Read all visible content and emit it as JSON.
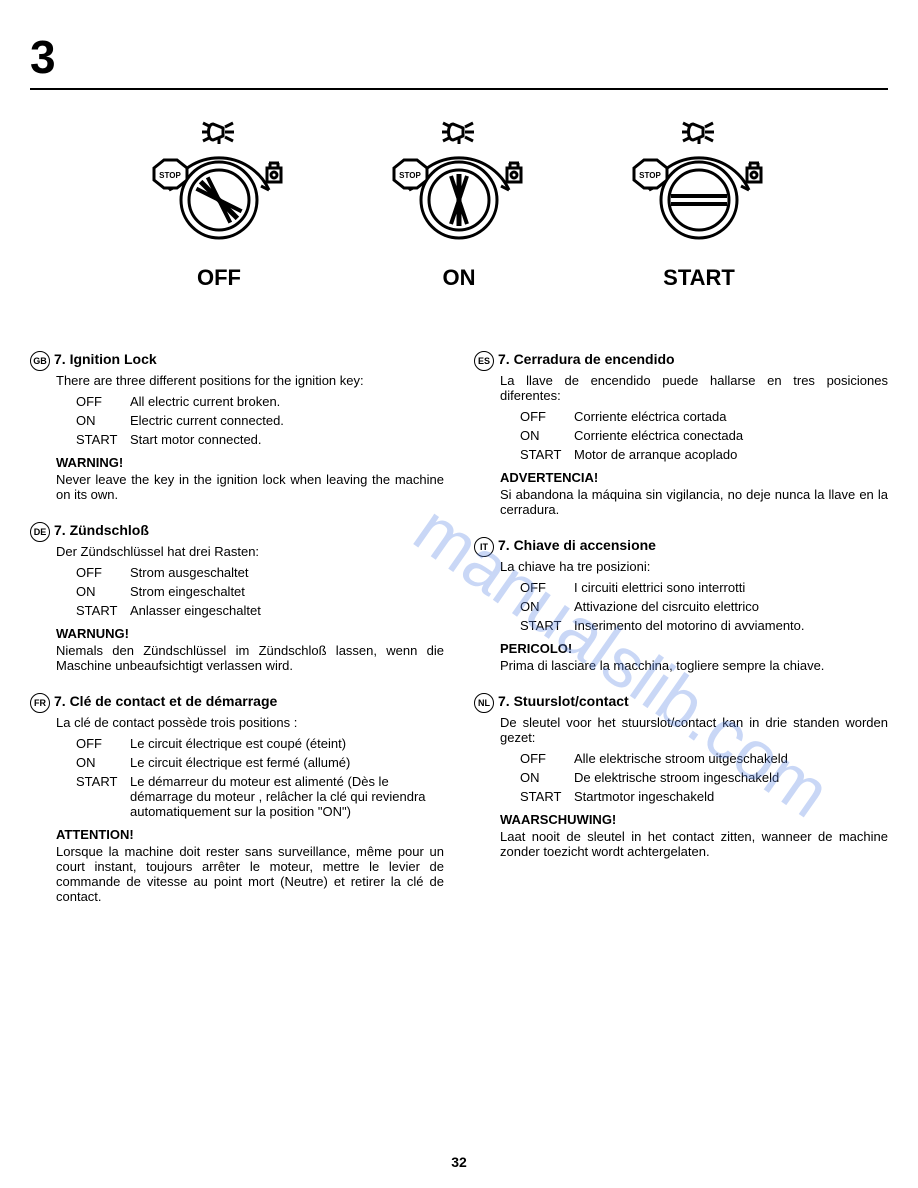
{
  "page_number_top": "3",
  "page_number_bottom": "32",
  "watermark_text": "manualslib.com",
  "diagrams": {
    "labels": [
      "OFF",
      "ON",
      "START"
    ],
    "key_angles": [
      45,
      90,
      135
    ]
  },
  "sections": [
    {
      "lang": "GB",
      "title": "7. Ignition Lock",
      "intro": "There are three different positions for the ignition key:",
      "positions": [
        {
          "key": "OFF",
          "val": "All electric current broken."
        },
        {
          "key": "ON",
          "val": "Electric current connected."
        },
        {
          "key": "START",
          "val": "Start motor connected."
        }
      ],
      "warn_label": "WARNING!",
      "warn_text": "Never leave the key in the ignition lock when leaving the machine on its own."
    },
    {
      "lang": "DE",
      "title": "7. Zündschloß",
      "intro": "Der Zündschlüssel hat drei Rasten:",
      "positions": [
        {
          "key": "OFF",
          "val": "Strom ausgeschaltet"
        },
        {
          "key": "ON",
          "val": "Strom eingeschaltet"
        },
        {
          "key": "START",
          "val": "Anlasser eingeschaltet"
        }
      ],
      "warn_label": "WARNUNG!",
      "warn_text": "Niemals den Zündschlüssel im Zündschloß lassen, wenn die Maschine unbeaufsichtigt verlassen wird."
    },
    {
      "lang": "FR",
      "title": "7. Clé de contact et de démarrage",
      "intro": "La clé de contact possède trois positions :",
      "positions": [
        {
          "key": "OFF",
          "val": "Le circuit électrique est coupé (éteint)"
        },
        {
          "key": "ON",
          "val": "Le circuit électrique est fermé (allumé)"
        },
        {
          "key": "START",
          "val": "Le démarreur du moteur est alimenté (Dès le démarrage du moteur , relâcher la clé qui reviendra automatiquement sur la position \"ON\")"
        }
      ],
      "warn_label": "ATTENTION!",
      "warn_text": "Lorsque la machine doit rester sans surveillance, même pour un court instant, toujours arrêter le moteur, mettre le levier de commande de vitesse au point mort (Neutre) et retirer la clé de contact."
    },
    {
      "lang": "ES",
      "title": "7. Cerradura de encendido",
      "intro": "La llave de encendido puede hallarse en tres posiciones diferentes:",
      "intro_justify": true,
      "positions": [
        {
          "key": "OFF",
          "val": "Corriente eléctrica cortada"
        },
        {
          "key": "ON",
          "val": "Corriente eléctrica conectada"
        },
        {
          "key": "START",
          "val": "Motor de arranque acoplado"
        }
      ],
      "warn_label": "ADVERTENCIA!",
      "warn_text": "Si abandona la máquina sin vigilancia, no deje nunca la llave en la cerradura."
    },
    {
      "lang": "IT",
      "title": "7. Chiave di accensione",
      "intro": "La chiave ha tre posizioni:",
      "positions": [
        {
          "key": "OFF",
          "val": "I circuiti elettrici sono interrotti"
        },
        {
          "key": "ON",
          "val": "Attivazione del cisrcuito elettrico"
        },
        {
          "key": "START",
          "val": "Inserimento del motorino di avviamento."
        }
      ],
      "warn_label": "PERICOLO!",
      "warn_text": "Prima di lasciare la macchina, togliere sempre la chiave."
    },
    {
      "lang": "NL",
      "title": "7. Stuurslot/contact",
      "intro": "De sleutel voor het stuurslot/contact kan in drie standen worden gezet:",
      "intro_justify": true,
      "positions": [
        {
          "key": "OFF",
          "val": "Alle elektrische stroom uitgeschakeld"
        },
        {
          "key": "ON",
          "val": "De elektrische stroom ingeschakeld"
        },
        {
          "key": "START",
          "val": "Startmotor ingeschakeld"
        }
      ],
      "warn_label": "WAARSCHUWING!",
      "warn_text": "Laat nooit de sleutel in het contact zitten, wanneer de machine zonder toezicht wordt achtergelaten."
    }
  ]
}
